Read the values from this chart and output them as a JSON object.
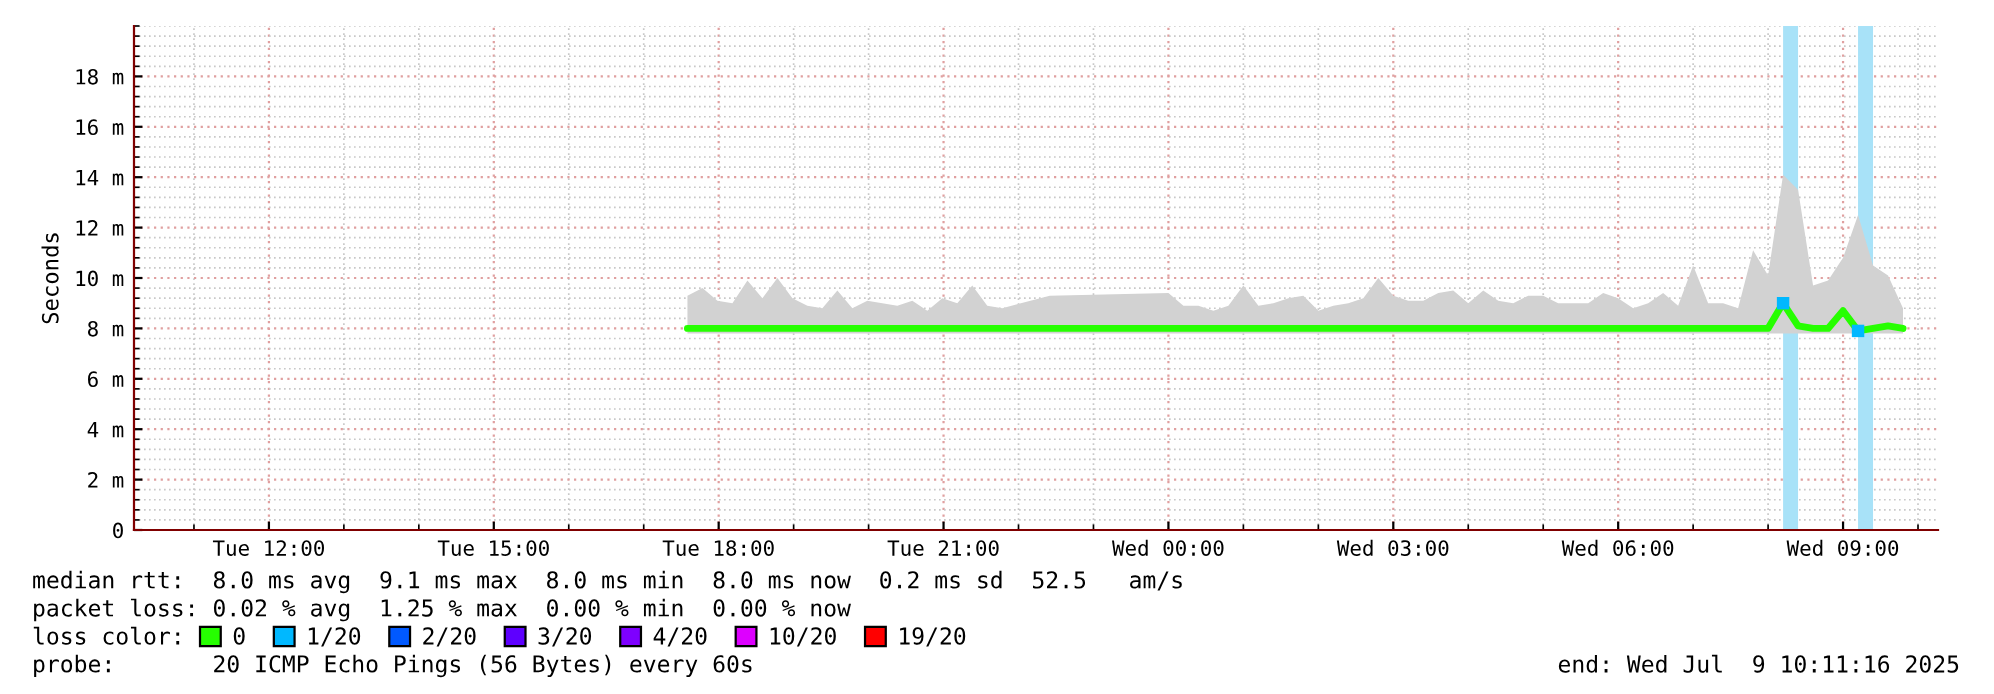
{
  "chart_data": {
    "type": "line",
    "ylabel": "Seconds",
    "x": [
      "2025-07-08T17:35",
      "2025-07-08T17:47",
      "2025-07-08T17:59",
      "2025-07-08T18:11",
      "2025-07-08T18:23",
      "2025-07-08T18:35",
      "2025-07-08T18:47",
      "2025-07-08T18:59",
      "2025-07-08T19:11",
      "2025-07-08T19:23",
      "2025-07-08T19:35",
      "2025-07-08T19:47",
      "2025-07-08T19:59",
      "2025-07-08T20:11",
      "2025-07-08T20:23",
      "2025-07-08T20:35",
      "2025-07-08T20:47",
      "2025-07-08T20:59",
      "2025-07-08T21:11",
      "2025-07-08T21:23",
      "2025-07-08T21:35",
      "2025-07-08T21:47",
      "2025-07-08T22:25",
      "2025-07-09T00:00",
      "2025-07-09T00:12",
      "2025-07-09T00:24",
      "2025-07-09T00:36",
      "2025-07-09T00:48",
      "2025-07-09T01:00",
      "2025-07-09T01:12",
      "2025-07-09T01:24",
      "2025-07-09T01:36",
      "2025-07-09T01:48",
      "2025-07-09T02:00",
      "2025-07-09T02:12",
      "2025-07-09T02:24",
      "2025-07-09T02:36",
      "2025-07-09T02:48",
      "2025-07-09T03:00",
      "2025-07-09T03:12",
      "2025-07-09T03:24",
      "2025-07-09T03:36",
      "2025-07-09T03:48",
      "2025-07-09T04:00",
      "2025-07-09T04:12",
      "2025-07-09T04:24",
      "2025-07-09T04:36",
      "2025-07-09T04:48",
      "2025-07-09T05:00",
      "2025-07-09T05:12",
      "2025-07-09T05:24",
      "2025-07-09T05:36",
      "2025-07-09T05:48",
      "2025-07-09T06:00",
      "2025-07-09T06:12",
      "2025-07-09T06:24",
      "2025-07-09T06:36",
      "2025-07-09T06:48",
      "2025-07-09T07:00",
      "2025-07-09T07:12",
      "2025-07-09T07:24",
      "2025-07-09T07:36",
      "2025-07-09T07:48",
      "2025-07-09T08:00",
      "2025-07-09T08:12",
      "2025-07-09T08:24",
      "2025-07-09T08:36",
      "2025-07-09T08:48",
      "2025-07-09T09:00",
      "2025-07-09T09:12",
      "2025-07-09T09:24",
      "2025-07-09T09:36",
      "2025-07-09T09:48"
    ],
    "series": [
      {
        "name": "0",
        "color": "#26ff00",
        "values": [
          8.0,
          8.0,
          8.0,
          8.0,
          8.0,
          8.0,
          8.0,
          8.0,
          8.0,
          8.0,
          8.0,
          8.0,
          8.0,
          8.0,
          8.0,
          8.0,
          8.0,
          8.0,
          8.0,
          8.0,
          8.0,
          8.0,
          8.0,
          8.0,
          8.0,
          8.0,
          8.0,
          8.0,
          8.0,
          8.0,
          8.0,
          8.0,
          8.0,
          8.0,
          8.0,
          8.0,
          8.0,
          8.0,
          8.0,
          8.0,
          8.0,
          8.0,
          8.0,
          8.0,
          8.0,
          8.0,
          8.0,
          8.0,
          8.0,
          8.0,
          8.0,
          8.0,
          8.0,
          8.0,
          8.0,
          8.0,
          8.0,
          8.0,
          8.0,
          8.0,
          8.0,
          8.0,
          8.0,
          8.0,
          9.0,
          8.1,
          8.0,
          8.0,
          8.7,
          7.9,
          8.0,
          8.1,
          8.0
        ],
        "lower": [
          7.8,
          7.8,
          7.8,
          7.8,
          7.8,
          7.8,
          7.8,
          7.8,
          7.8,
          7.8,
          7.8,
          7.8,
          7.8,
          7.8,
          7.8,
          7.8,
          7.8,
          7.8,
          7.8,
          7.8,
          7.8,
          7.8,
          7.8,
          7.8,
          7.8,
          7.8,
          7.8,
          7.8,
          7.8,
          7.8,
          7.8,
          7.8,
          7.8,
          7.8,
          7.8,
          7.8,
          7.8,
          7.8,
          7.8,
          7.8,
          7.8,
          7.8,
          7.8,
          7.8,
          7.8,
          7.8,
          7.8,
          7.8,
          7.8,
          7.8,
          7.8,
          7.8,
          7.8,
          7.8,
          7.8,
          7.8,
          7.8,
          7.8,
          7.8,
          7.8,
          7.8,
          7.8,
          7.8,
          7.8,
          7.8,
          7.8,
          7.8,
          7.8,
          7.8,
          7.8,
          7.8,
          7.8,
          7.8
        ],
        "upper": [
          9.3,
          9.6,
          9.1,
          9.0,
          9.9,
          9.2,
          10.0,
          9.2,
          8.9,
          8.8,
          9.5,
          8.8,
          9.1,
          9.0,
          8.9,
          9.1,
          8.7,
          9.2,
          9.0,
          9.7,
          8.9,
          8.8,
          9.3,
          9.4,
          8.9,
          8.9,
          8.7,
          8.9,
          9.7,
          8.9,
          9.0,
          9.2,
          9.3,
          8.7,
          8.9,
          9.0,
          9.2,
          10.0,
          9.3,
          9.1,
          9.1,
          9.4,
          9.5,
          9.0,
          9.5,
          9.1,
          9.0,
          9.3,
          9.3,
          9.0,
          9.0,
          9.0,
          9.4,
          9.2,
          8.8,
          9.0,
          9.4,
          8.9,
          10.5,
          9.0,
          9.0,
          8.8,
          11.1,
          10.1,
          14.1,
          13.5,
          9.7,
          9.9,
          10.8,
          12.5,
          10.5,
          10.1,
          8.8
        ]
      },
      {
        "name": "1/20",
        "type": "scatter",
        "color": "#00b8ff",
        "marker": "square",
        "values": [
          null,
          null,
          null,
          null,
          null,
          null,
          null,
          null,
          null,
          null,
          null,
          null,
          null,
          null,
          null,
          null,
          null,
          null,
          null,
          null,
          null,
          null,
          null,
          null,
          null,
          null,
          null,
          null,
          null,
          null,
          null,
          null,
          null,
          null,
          null,
          null,
          null,
          null,
          null,
          null,
          null,
          null,
          null,
          null,
          null,
          null,
          null,
          null,
          null,
          null,
          null,
          null,
          null,
          null,
          null,
          null,
          null,
          null,
          null,
          null,
          null,
          null,
          null,
          null,
          9.0,
          null,
          null,
          null,
          null,
          7.9,
          null,
          null,
          null
        ]
      },
      {
        "name": "2/20",
        "color": "#0059ff",
        "values": [
          null,
          null,
          null,
          null,
          null,
          null,
          null,
          null,
          null,
          null,
          null,
          null,
          null,
          null,
          null,
          null,
          null,
          null,
          null,
          null,
          null,
          null,
          null,
          null,
          null,
          null,
          null,
          null,
          null,
          null,
          null,
          null,
          null,
          null,
          null,
          null,
          null,
          null,
          null,
          null,
          null,
          null,
          null,
          null,
          null,
          null,
          null,
          null,
          null,
          null,
          null,
          null,
          null,
          null,
          null,
          null,
          null,
          null,
          null,
          null,
          null,
          null,
          null,
          null,
          null,
          null,
          null,
          null,
          null,
          null,
          null,
          null,
          null
        ]
      },
      {
        "name": "3/20",
        "color": "#5e00ff",
        "values": [
          null,
          null,
          null,
          null,
          null,
          null,
          null,
          null,
          null,
          null,
          null,
          null,
          null,
          null,
          null,
          null,
          null,
          null,
          null,
          null,
          null,
          null,
          null,
          null,
          null,
          null,
          null,
          null,
          null,
          null,
          null,
          null,
          null,
          null,
          null,
          null,
          null,
          null,
          null,
          null,
          null,
          null,
          null,
          null,
          null,
          null,
          null,
          null,
          null,
          null,
          null,
          null,
          null,
          null,
          null,
          null,
          null,
          null,
          null,
          null,
          null,
          null,
          null,
          null,
          null,
          null,
          null,
          null,
          null,
          null,
          null,
          null,
          null
        ]
      },
      {
        "name": "4/20",
        "color": "#7e00ff",
        "values": [
          null,
          null,
          null,
          null,
          null,
          null,
          null,
          null,
          null,
          null,
          null,
          null,
          null,
          null,
          null,
          null,
          null,
          null,
          null,
          null,
          null,
          null,
          null,
          null,
          null,
          null,
          null,
          null,
          null,
          null,
          null,
          null,
          null,
          null,
          null,
          null,
          null,
          null,
          null,
          null,
          null,
          null,
          null,
          null,
          null,
          null,
          null,
          null,
          null,
          null,
          null,
          null,
          null,
          null,
          null,
          null,
          null,
          null,
          null,
          null,
          null,
          null,
          null,
          null,
          null,
          null,
          null,
          null,
          null,
          null,
          null,
          null,
          null
        ]
      },
      {
        "name": "10/20",
        "color": "#dd00ff",
        "values": [
          null,
          null,
          null,
          null,
          null,
          null,
          null,
          null,
          null,
          null,
          null,
          null,
          null,
          null,
          null,
          null,
          null,
          null,
          null,
          null,
          null,
          null,
          null,
          null,
          null,
          null,
          null,
          null,
          null,
          null,
          null,
          null,
          null,
          null,
          null,
          null,
          null,
          null,
          null,
          null,
          null,
          null,
          null,
          null,
          null,
          null,
          null,
          null,
          null,
          null,
          null,
          null,
          null,
          null,
          null,
          null,
          null,
          null,
          null,
          null,
          null,
          null,
          null,
          null,
          null,
          null,
          null,
          null,
          null,
          null,
          null,
          null,
          null
        ]
      },
      {
        "name": "19/20",
        "color": "#ff0000",
        "values": [
          null,
          null,
          null,
          null,
          null,
          null,
          null,
          null,
          null,
          null,
          null,
          null,
          null,
          null,
          null,
          null,
          null,
          null,
          null,
          null,
          null,
          null,
          null,
          null,
          null,
          null,
          null,
          null,
          null,
          null,
          null,
          null,
          null,
          null,
          null,
          null,
          null,
          null,
          null,
          null,
          null,
          null,
          null,
          null,
          null,
          null,
          null,
          null,
          null,
          null,
          null,
          null,
          null,
          null,
          null,
          null,
          null,
          null,
          null,
          null,
          null,
          null,
          null,
          null,
          null,
          null,
          null,
          null,
          null,
          null,
          null,
          null,
          null
        ]
      }
    ],
    "legend": "bottom",
    "legend_title": "loss color:",
    "bands": [
      {
        "axis": "x",
        "from": "2025-07-09T08:12",
        "to": "2025-07-09T08:24",
        "color": "#a8e2f8"
      },
      {
        "axis": "x",
        "from": "2025-07-09T09:12",
        "to": "2025-07-09T09:24",
        "color": "#a8e2f8"
      }
    ],
    "xlim": [
      "2025-07-08T10:12",
      "2025-07-09T10:16"
    ],
    "xticks": [
      {
        "value": "2025-07-08T12:00",
        "label": "Tue 12:00"
      },
      {
        "value": "2025-07-08T15:00",
        "label": "Tue 15:00"
      },
      {
        "value": "2025-07-08T18:00",
        "label": "Tue 18:00"
      },
      {
        "value": "2025-07-08T21:00",
        "label": "Tue 21:00"
      },
      {
        "value": "2025-07-09T00:00",
        "label": "Wed 00:00"
      },
      {
        "value": "2025-07-09T03:00",
        "label": "Wed 03:00"
      },
      {
        "value": "2025-07-09T06:00",
        "label": "Wed 06:00"
      },
      {
        "value": "2025-07-09T09:00",
        "label": "Wed 09:00"
      }
    ],
    "ylim": [
      0,
      20
    ],
    "yticks": [
      0,
      {
        "value": 2,
        "label": "2 m"
      },
      {
        "value": 4,
        "label": "4 m"
      },
      {
        "value": 6,
        "label": "6 m"
      },
      {
        "value": 8,
        "label": "8 m"
      },
      {
        "value": 10,
        "label": "10 m"
      },
      {
        "value": 12,
        "label": "12 m"
      },
      {
        "value": 14,
        "label": "14 m"
      },
      {
        "value": 16,
        "label": "16 m"
      },
      {
        "value": 18,
        "label": "18 m"
      }
    ],
    "grid": true,
    "annotations": [
      "median rtt:  8.0 ms avg  9.1 ms max  8.0 ms min  8.0 ms now  0.2 ms sd  52.5   am/s",
      "packet loss: 0.02 % avg  1.25 % max  0.00 % min  0.00 % now",
      "probe:       20 ICMP Echo Pings (56 Bytes) every 60s",
      "end: Wed Jul  9 10:11:16 2025"
    ]
  }
}
